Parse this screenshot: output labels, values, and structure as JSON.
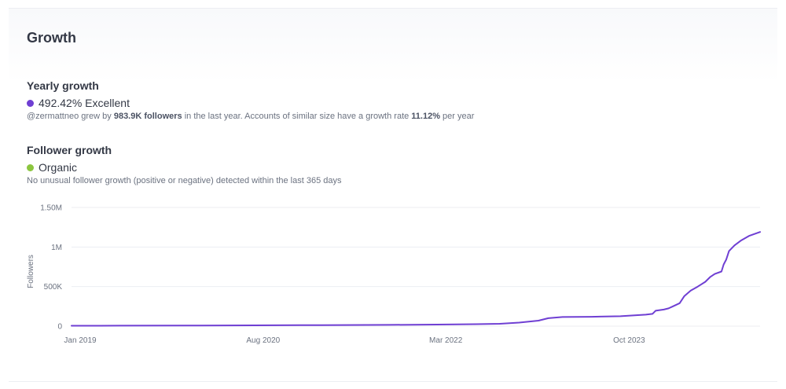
{
  "card": {
    "title": "Growth"
  },
  "yearly_growth": {
    "heading": "Yearly growth",
    "rate": "492.42%",
    "rating": "Excellent",
    "dot_color": "#6f3fd3",
    "desc_prefix": "@zermattneo grew by ",
    "desc_followers": "983.9K followers",
    "desc_middle": " in the last year. Accounts of similar size have a growth rate ",
    "desc_rate": "11.12%",
    "desc_suffix": " per year"
  },
  "follower_growth": {
    "heading": "Follower growth",
    "status": "Organic",
    "dot_color": "#8cc63f",
    "desc": "No unusual follower growth (positive or negative) detected within the last 365 days"
  },
  "chart_data": {
    "type": "line",
    "title": "",
    "xlabel": "",
    "ylabel": "Followers",
    "ylim": [
      0,
      1500000
    ],
    "xlim": [
      "2019-01-01",
      "2024-12-15"
    ],
    "grid": true,
    "line_color": "#6f3fd3",
    "x_ticks": [
      {
        "date": "2019-01-01",
        "label": "Jan 2019"
      },
      {
        "date": "2020-08-01",
        "label": "Aug 2020"
      },
      {
        "date": "2022-03-01",
        "label": "Mar 2022"
      },
      {
        "date": "2023-10-01",
        "label": "Oct 2023"
      }
    ],
    "y_ticks": [
      {
        "value": 0,
        "label": "0"
      },
      {
        "value": 500000,
        "label": "500K"
      },
      {
        "value": 1000000,
        "label": "1M"
      },
      {
        "value": 1500000,
        "label": "1.50M"
      }
    ],
    "series": [
      {
        "points": [
          [
            "2019-01-01",
            5000
          ],
          [
            "2019-06-01",
            5500
          ],
          [
            "2020-01-01",
            7000
          ],
          [
            "2020-08-01",
            10000
          ],
          [
            "2021-03-01",
            13000
          ],
          [
            "2021-10-01",
            16000
          ],
          [
            "2022-03-01",
            20000
          ],
          [
            "2022-07-01",
            25000
          ],
          [
            "2022-09-15",
            30000
          ],
          [
            "2022-11-15",
            45000
          ],
          [
            "2023-01-15",
            70000
          ],
          [
            "2023-02-15",
            100000
          ],
          [
            "2023-04-01",
            115000
          ],
          [
            "2023-07-01",
            118000
          ],
          [
            "2023-10-01",
            125000
          ],
          [
            "2023-12-20",
            145000
          ],
          [
            "2024-01-10",
            155000
          ],
          [
            "2024-01-20",
            195000
          ],
          [
            "2024-02-15",
            210000
          ],
          [
            "2024-03-01",
            225000
          ],
          [
            "2024-03-15",
            250000
          ],
          [
            "2024-04-05",
            290000
          ],
          [
            "2024-04-20",
            380000
          ],
          [
            "2024-05-10",
            450000
          ],
          [
            "2024-06-01",
            500000
          ],
          [
            "2024-06-25",
            560000
          ],
          [
            "2024-07-10",
            620000
          ],
          [
            "2024-07-25",
            660000
          ],
          [
            "2024-08-15",
            690000
          ],
          [
            "2024-08-22",
            780000
          ],
          [
            "2024-08-30",
            840000
          ],
          [
            "2024-09-08",
            950000
          ],
          [
            "2024-09-25",
            1020000
          ],
          [
            "2024-10-15",
            1080000
          ],
          [
            "2024-11-10",
            1140000
          ],
          [
            "2024-12-15",
            1190000
          ]
        ]
      }
    ]
  }
}
